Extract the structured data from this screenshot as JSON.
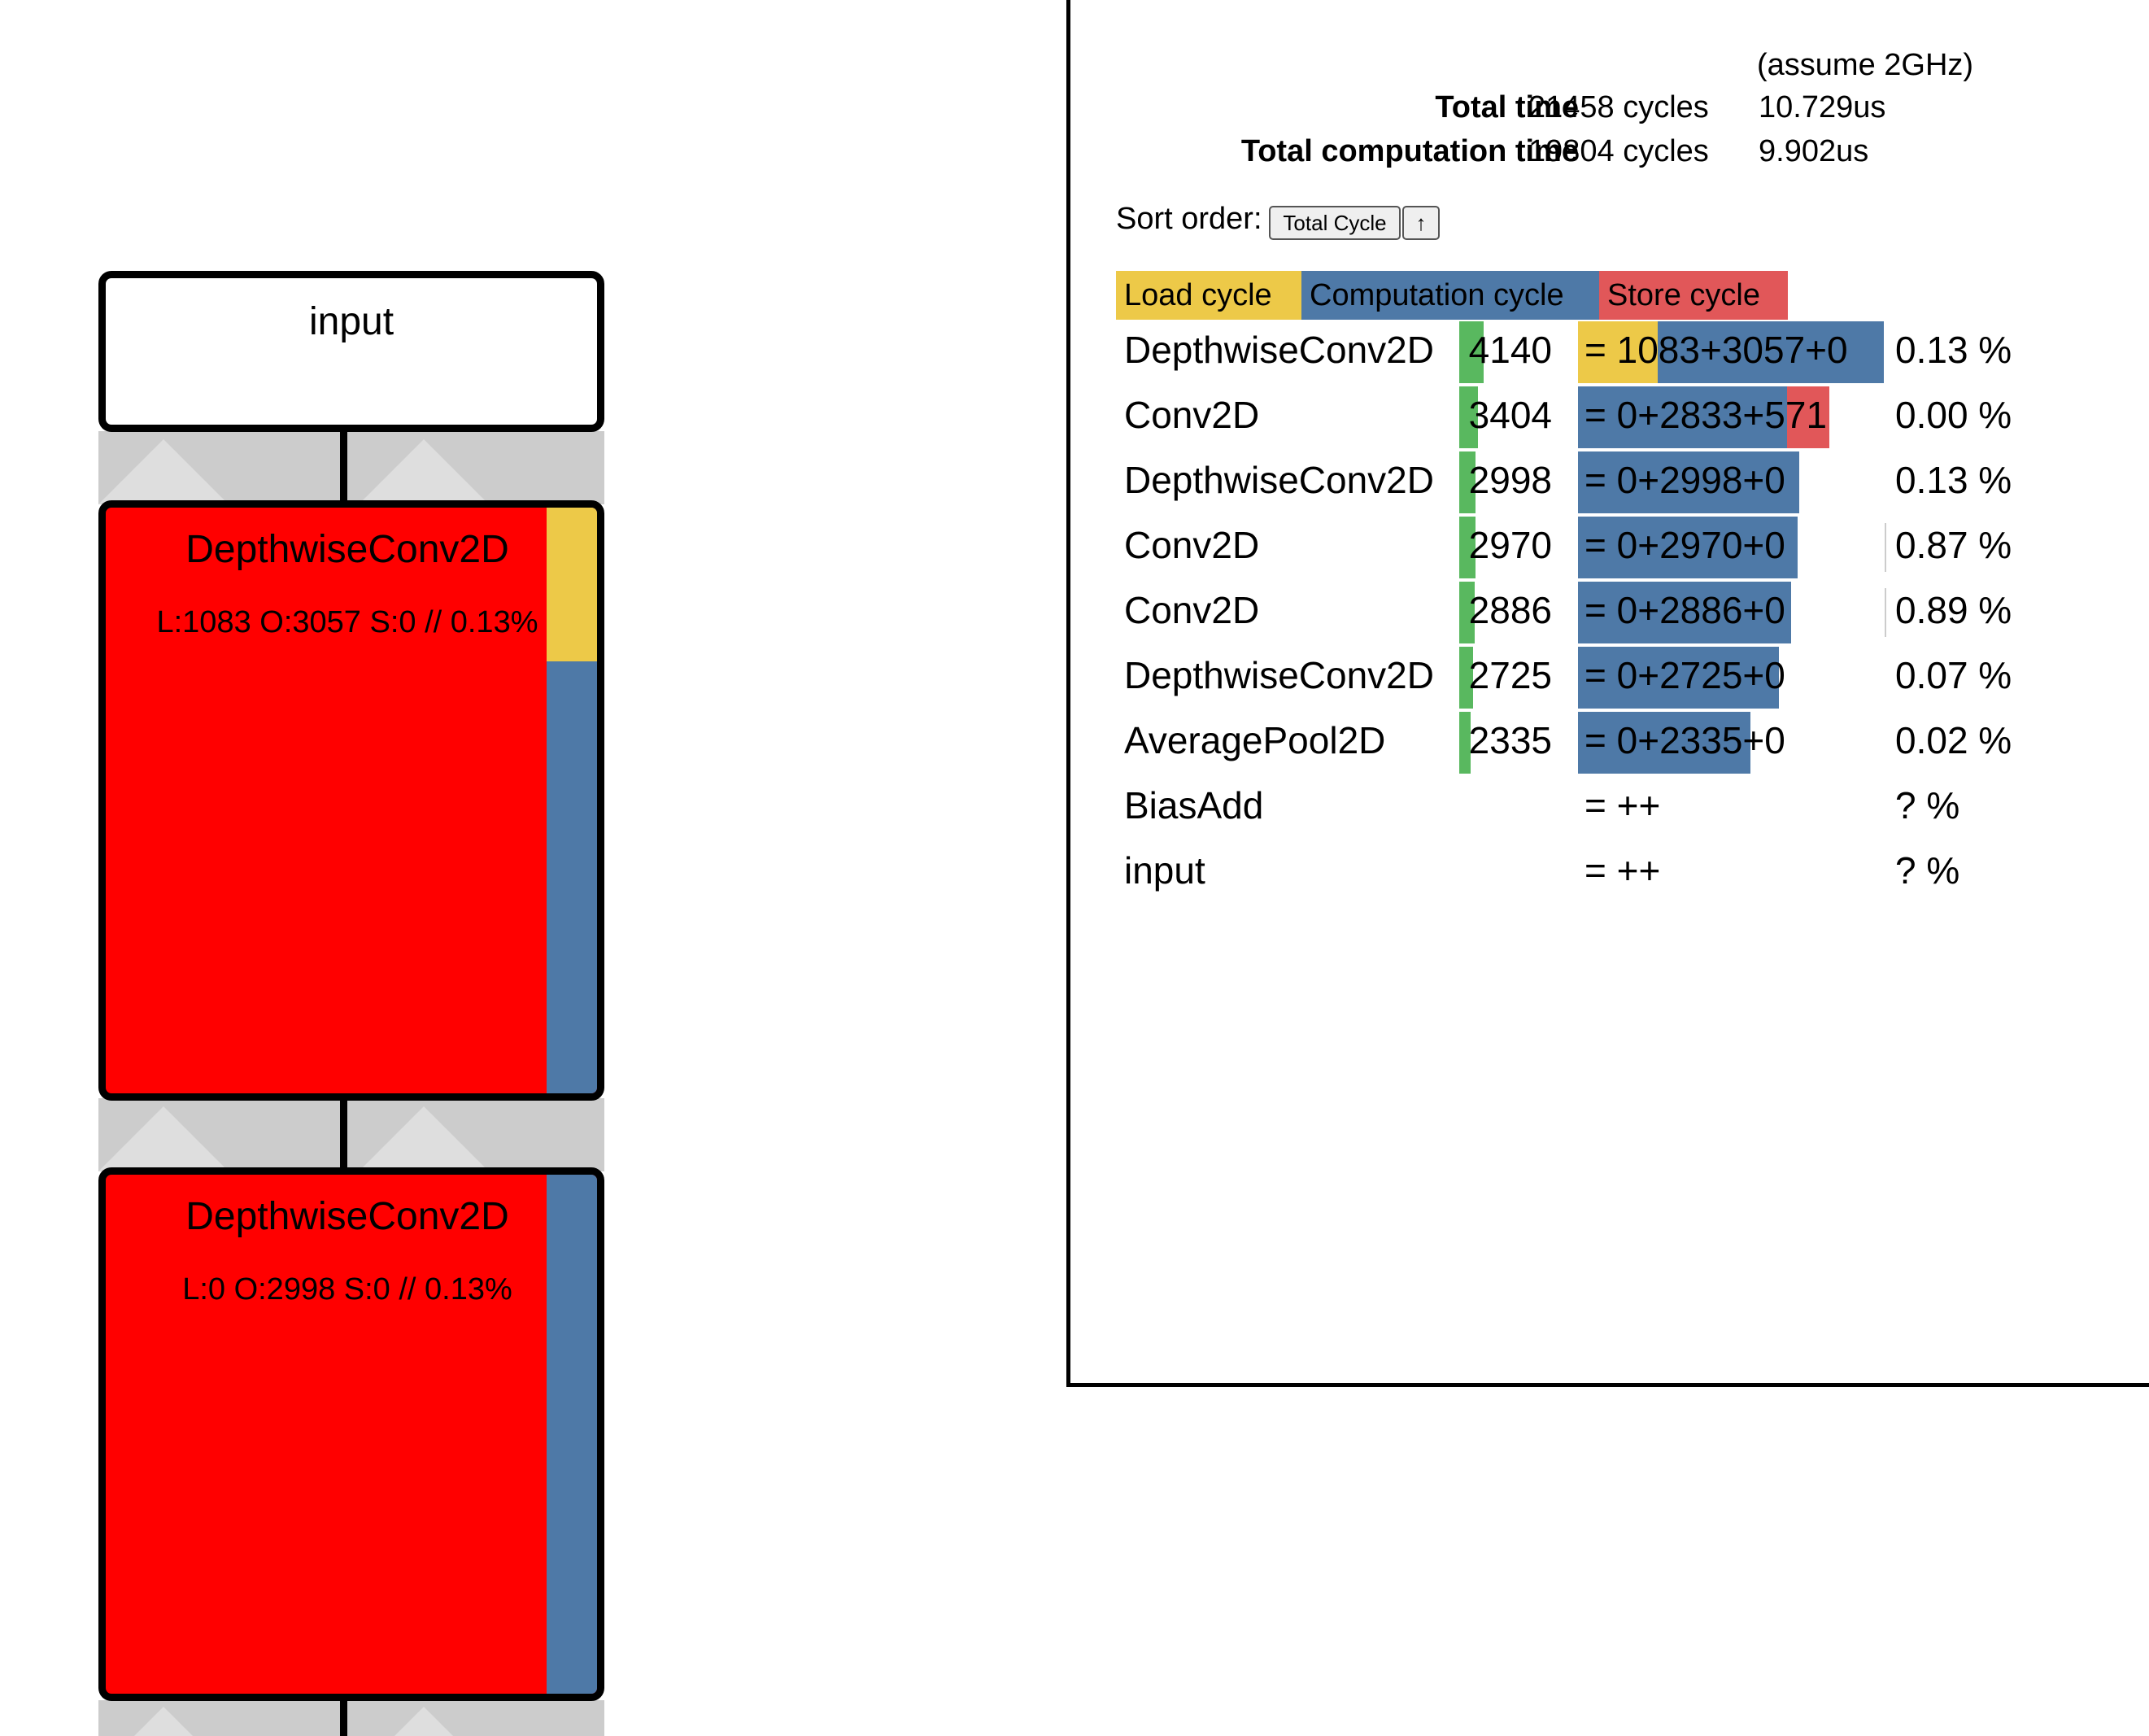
{
  "graph": {
    "nodes": [
      {
        "title": "input",
        "stats": ""
      },
      {
        "title": "DepthwiseConv2D",
        "stats": "L:1083 O:3057 S:0 // 0.13%",
        "load_fraction": 0.262,
        "compute_fraction": 0.738,
        "store_fraction": 0
      },
      {
        "title": "DepthwiseConv2D",
        "stats": "L:0 O:2998 S:0 // 0.13%",
        "load_fraction": 0,
        "compute_fraction": 1,
        "store_fraction": 0
      }
    ]
  },
  "panel": {
    "clock_note": "(assume 2GHz)",
    "total_time": {
      "label": "Total time",
      "cycles": "21458 cycles",
      "time": "10.729us"
    },
    "total_computation_time": {
      "label": "Total computation time",
      "cycles": "19804 cycles",
      "time": "9.902us"
    },
    "sort": {
      "label": "Sort order:",
      "key_button": "Total Cycle",
      "direction_button": "↑"
    },
    "legend": {
      "load": "Load cycle",
      "computation": "Computation cycle",
      "store": "Store cycle"
    },
    "colors": {
      "load": "#edc948",
      "computation": "#4e79a7",
      "store": "#e15759",
      "total": "#59b85f",
      "node_fill": "#ff0000"
    },
    "max_total": 4140,
    "rows": [
      {
        "name": "DepthwiseConv2D",
        "total": 4140,
        "total_text": "4140",
        "load": 1083,
        "compute": 3057,
        "store": 0,
        "breakdown": "= 1083+3057+0",
        "pct": "0.13 %",
        "tick": false
      },
      {
        "name": "Conv2D",
        "total": 3404,
        "total_text": "3404",
        "load": 0,
        "compute": 2833,
        "store": 571,
        "breakdown": "= 0+2833+571",
        "pct": "0.00 %",
        "tick": false
      },
      {
        "name": "DepthwiseConv2D",
        "total": 2998,
        "total_text": "2998",
        "load": 0,
        "compute": 2998,
        "store": 0,
        "breakdown": "= 0+2998+0",
        "pct": "0.13 %",
        "tick": false
      },
      {
        "name": "Conv2D",
        "total": 2970,
        "total_text": "2970",
        "load": 0,
        "compute": 2970,
        "store": 0,
        "breakdown": "= 0+2970+0",
        "pct": "0.87 %",
        "tick": true
      },
      {
        "name": "Conv2D",
        "total": 2886,
        "total_text": "2886",
        "load": 0,
        "compute": 2886,
        "store": 0,
        "breakdown": "= 0+2886+0",
        "pct": "0.89 %",
        "tick": true
      },
      {
        "name": "DepthwiseConv2D",
        "total": 2725,
        "total_text": "2725",
        "load": 0,
        "compute": 2725,
        "store": 0,
        "breakdown": "= 0+2725+0",
        "pct": "0.07 %",
        "tick": false
      },
      {
        "name": "AveragePool2D",
        "total": 2335,
        "total_text": "2335",
        "load": 0,
        "compute": 2335,
        "store": 0,
        "breakdown": "= 0+2335+0",
        "pct": "0.02 %",
        "tick": false
      },
      {
        "name": "BiasAdd",
        "total": null,
        "total_text": "",
        "load": null,
        "compute": null,
        "store": null,
        "breakdown": "= ++",
        "pct": "? %",
        "tick": false
      },
      {
        "name": "input",
        "total": null,
        "total_text": "",
        "load": null,
        "compute": null,
        "store": null,
        "breakdown": "= ++",
        "pct": "? %",
        "tick": false
      }
    ]
  }
}
